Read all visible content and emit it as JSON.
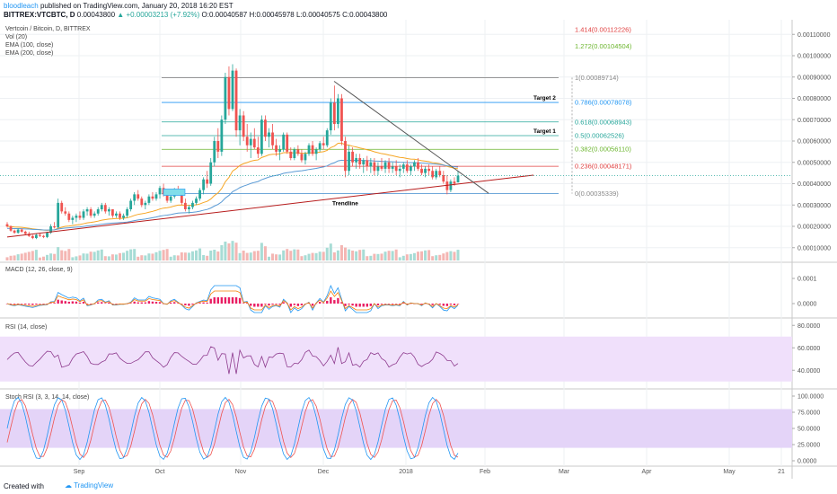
{
  "header": {
    "author": "bloodleach",
    "published": "published on TradingView.com, January 20, 2018 16:20 EST",
    "symbol": "BITTREX:VTCBTC, D",
    "last": "0.00043800",
    "change": "▲ +0.00003213 (+7.92%)",
    "ohlc": "O:0.00040587 H:0.00045978 L:0.00040575 C:0.00043800"
  },
  "footer": {
    "created": "Created with",
    "brand": "TradingView"
  },
  "chart_data": [
    {
      "type": "candlestick",
      "pane": "main",
      "legend": [
        "Vertcoin / Bitcoin, D, BITTREX",
        "Vol (20)",
        "EMA (100, close)",
        "EMA (200, close)"
      ],
      "y_ticks": [
        "0.00110000",
        "0.00100000",
        "0.00090000",
        "0.00080000",
        "0.00070000",
        "0.00060000",
        "0.00050000",
        "0.00040000",
        "0.00030000",
        "0.00020000",
        "0.00010000"
      ],
      "ylim": [
        4e-05,
        0.00116
      ],
      "x_ticks": [
        "Sep",
        "Oct",
        "Nov",
        "Dec",
        "2018",
        "Feb",
        "Mar",
        "Apr",
        "May",
        "21"
      ],
      "colors": {
        "up": "#26a69a",
        "down": "#ef5350",
        "ema100": "#f6a624",
        "ema200": "#5b9bd5",
        "volume_up": "#a7dcd5",
        "volume_down": "#f4b6b3"
      },
      "fibonacci": [
        {
          "label": "1.414(0.00112226)",
          "value": 0.00112226,
          "color": "#e04040"
        },
        {
          "label": "1.272(0.00104504)",
          "value": 0.00104504,
          "color": "#6bb52d"
        },
        {
          "label": "1(0.00089714)",
          "value": 0.00089714,
          "color": "#888888"
        },
        {
          "label": "0.786(0.00078078)",
          "value": 0.00078078,
          "color": "#2196f3"
        },
        {
          "label": "0.618(0.00068943)",
          "value": 0.00068943,
          "color": "#26a69a"
        },
        {
          "label": "0.5(0.00062526)",
          "value": 0.00062526,
          "color": "#26a69a"
        },
        {
          "label": "0.382(0.00056110)",
          "value": 0.0005611,
          "color": "#6bb52d"
        },
        {
          "label": "0.236(0.00048171)",
          "value": 0.00048171,
          "color": "#e04040"
        },
        {
          "label": "0(0.00035339)",
          "value": 0.00035339,
          "color": "#888888"
        }
      ],
      "annotations": [
        "Target 2",
        "Target 1",
        "Trendline"
      ],
      "candles": [
        [
          0.00021,
          0.00022,
          0.000195,
          0.0002
        ],
        [
          0.0002,
          0.000205,
          0.000175,
          0.00018
        ],
        [
          0.00018,
          0.000185,
          0.000165,
          0.00017
        ],
        [
          0.00017,
          0.00019,
          0.000165,
          0.000185
        ],
        [
          0.000185,
          0.00019,
          0.00017,
          0.000175
        ],
        [
          0.000175,
          0.00018,
          0.00016,
          0.000165
        ],
        [
          0.000165,
          0.000175,
          0.00015,
          0.000155
        ],
        [
          0.000155,
          0.00016,
          0.00014,
          0.000145
        ],
        [
          0.000145,
          0.000165,
          0.00014,
          0.00016
        ],
        [
          0.00016,
          0.00017,
          0.00015,
          0.000155
        ],
        [
          0.000155,
          0.00016,
          0.000145,
          0.00015
        ],
        [
          0.00015,
          0.000175,
          0.000145,
          0.00017
        ],
        [
          0.00017,
          0.00021,
          0.000165,
          0.0002
        ],
        [
          0.0002,
          0.00022,
          0.00019,
          0.000195
        ],
        [
          0.000195,
          0.00033,
          0.00019,
          0.00031
        ],
        [
          0.00031,
          0.00032,
          0.00026,
          0.00027
        ],
        [
          0.00027,
          0.00029,
          0.00025,
          0.00026
        ],
        [
          0.00026,
          0.00027,
          0.00022,
          0.00023
        ],
        [
          0.00023,
          0.00025,
          0.00021,
          0.00024
        ],
        [
          0.00024,
          0.00026,
          0.00022,
          0.00025
        ],
        [
          0.00025,
          0.00027,
          0.00023,
          0.00024
        ],
        [
          0.00024,
          0.00028,
          0.00023,
          0.00027
        ],
        [
          0.00027,
          0.00029,
          0.00025,
          0.00028
        ],
        [
          0.00028,
          0.00029,
          0.00024,
          0.00025
        ],
        [
          0.00025,
          0.00027,
          0.00024,
          0.00026
        ],
        [
          0.00026,
          0.00029,
          0.00025,
          0.00028
        ],
        [
          0.00028,
          0.00031,
          0.00027,
          0.0003
        ],
        [
          0.0003,
          0.00031,
          0.00026,
          0.00027
        ],
        [
          0.00027,
          0.00029,
          0.00025,
          0.00028
        ],
        [
          0.00028,
          0.00028,
          0.00024,
          0.00025
        ],
        [
          0.00025,
          0.00027,
          0.00024,
          0.00026
        ],
        [
          0.00026,
          0.00027,
          0.00023,
          0.00024
        ],
        [
          0.00024,
          0.00026,
          0.00023,
          0.00025
        ],
        [
          0.00025,
          0.00029,
          0.00024,
          0.00028
        ],
        [
          0.00028,
          0.00033,
          0.00027,
          0.00032
        ],
        [
          0.00032,
          0.00036,
          0.0003,
          0.00035
        ],
        [
          0.00035,
          0.00037,
          0.00032,
          0.00033
        ],
        [
          0.00033,
          0.00034,
          0.00029,
          0.0003
        ],
        [
          0.0003,
          0.00032,
          0.00028,
          0.00031
        ],
        [
          0.00031,
          0.00035,
          0.0003,
          0.00034
        ],
        [
          0.00034,
          0.00036,
          0.00032,
          0.00033
        ],
        [
          0.00033,
          0.00036,
          0.00032,
          0.00035
        ],
        [
          0.00035,
          0.00039,
          0.00033,
          0.00038
        ],
        [
          0.00038,
          0.0004,
          0.00034,
          0.00035
        ],
        [
          0.00035,
          0.00037,
          0.00031,
          0.00032
        ],
        [
          0.00032,
          0.00035,
          0.00031,
          0.00034
        ],
        [
          0.00034,
          0.00038,
          0.00033,
          0.00037
        ],
        [
          0.00037,
          0.00039,
          0.00035,
          0.00036
        ],
        [
          0.00036,
          0.00037,
          0.0003,
          0.00031
        ],
        [
          0.00031,
          0.00033,
          0.00027,
          0.00028
        ],
        [
          0.00028,
          0.0003,
          0.00026,
          0.00029
        ],
        [
          0.00029,
          0.00032,
          0.00028,
          0.00031
        ],
        [
          0.00031,
          0.00034,
          0.0003,
          0.00033
        ],
        [
          0.00033,
          0.00038,
          0.00032,
          0.00037
        ],
        [
          0.00037,
          0.00043,
          0.00035,
          0.00042
        ],
        [
          0.00042,
          0.00046,
          0.00038,
          0.0004
        ],
        [
          0.0004,
          0.00052,
          0.00039,
          0.0005
        ],
        [
          0.0005,
          0.00062,
          0.00048,
          0.0006
        ],
        [
          0.0006,
          0.00066,
          0.00052,
          0.00055
        ],
        [
          0.00055,
          0.00072,
          0.00053,
          0.0007
        ],
        [
          0.0007,
          0.00092,
          0.00068,
          0.0009
        ],
        [
          0.0009,
          0.00095,
          0.00072,
          0.00075
        ],
        [
          0.00075,
          0.00096,
          0.00074,
          0.00093
        ],
        [
          0.00093,
          0.00094,
          0.00062,
          0.00065
        ],
        [
          0.00065,
          0.00075,
          0.00058,
          0.00072
        ],
        [
          0.00072,
          0.00074,
          0.0006,
          0.00062
        ],
        [
          0.00062,
          0.00068,
          0.00055,
          0.00058
        ],
        [
          0.00058,
          0.00064,
          0.00052,
          0.00061
        ],
        [
          0.00061,
          0.00066,
          0.00056,
          0.00057
        ],
        [
          0.00057,
          0.00062,
          0.00052,
          0.00054
        ],
        [
          0.00054,
          0.00072,
          0.00053,
          0.0007
        ],
        [
          0.0007,
          0.00072,
          0.0006,
          0.00062
        ],
        [
          0.00062,
          0.00066,
          0.00057,
          0.00064
        ],
        [
          0.00064,
          0.00068,
          0.00056,
          0.00058
        ],
        [
          0.00058,
          0.00061,
          0.00053,
          0.00055
        ],
        [
          0.00055,
          0.00058,
          0.00051,
          0.00056
        ],
        [
          0.00056,
          0.00064,
          0.00055,
          0.00063
        ],
        [
          0.00063,
          0.00064,
          0.00054,
          0.00055
        ],
        [
          0.00055,
          0.00057,
          0.00051,
          0.00052
        ],
        [
          0.00052,
          0.00057,
          0.00051,
          0.00056
        ],
        [
          0.00056,
          0.00058,
          0.00053,
          0.00054
        ],
        [
          0.00054,
          0.00056,
          0.0005,
          0.00051
        ],
        [
          0.00051,
          0.00055,
          0.00049,
          0.00054
        ],
        [
          0.00054,
          0.00059,
          0.00053,
          0.00058
        ],
        [
          0.00058,
          0.0006,
          0.00053,
          0.00054
        ],
        [
          0.00054,
          0.00057,
          0.00051,
          0.00056
        ],
        [
          0.00056,
          0.0006,
          0.00055,
          0.00059
        ],
        [
          0.00059,
          0.00062,
          0.00056,
          0.00058
        ],
        [
          0.00058,
          0.00066,
          0.00057,
          0.00065
        ],
        [
          0.00065,
          0.0008,
          0.00063,
          0.00078
        ],
        [
          0.00078,
          0.00086,
          0.00065,
          0.00068
        ],
        [
          0.00068,
          0.00082,
          0.00066,
          0.0008
        ],
        [
          0.0008,
          0.00082,
          0.00058,
          0.0006
        ],
        [
          0.0006,
          0.00062,
          0.00043,
          0.00046
        ],
        [
          0.00046,
          0.00058,
          0.00044,
          0.00055
        ],
        [
          0.00055,
          0.00057,
          0.00048,
          0.0005
        ],
        [
          0.0005,
          0.00054,
          0.00047,
          0.00052
        ],
        [
          0.00052,
          0.00054,
          0.00047,
          0.00049
        ],
        [
          0.00049,
          0.00052,
          0.00045,
          0.00051
        ],
        [
          0.00051,
          0.00053,
          0.00046,
          0.00048
        ],
        [
          0.00048,
          0.00052,
          0.00045,
          0.0005
        ],
        [
          0.0005,
          0.00052,
          0.00044,
          0.00046
        ],
        [
          0.00046,
          0.0005,
          0.00044,
          0.00048
        ],
        [
          0.00048,
          0.00052,
          0.00046,
          0.00047
        ],
        [
          0.00047,
          0.00051,
          0.00045,
          0.0005
        ],
        [
          0.0005,
          0.00052,
          0.00045,
          0.00047
        ],
        [
          0.00047,
          0.0005,
          0.00045,
          0.00048
        ],
        [
          0.00048,
          0.00051,
          0.00044,
          0.00046
        ],
        [
          0.00046,
          0.00049,
          0.00043,
          0.00047
        ],
        [
          0.00047,
          0.0005,
          0.00045,
          0.00049
        ],
        [
          0.00049,
          0.00051,
          0.00045,
          0.00046
        ],
        [
          0.00046,
          0.00049,
          0.00044,
          0.00048
        ],
        [
          0.00048,
          0.00051,
          0.00046,
          0.0005
        ],
        [
          0.0005,
          0.00052,
          0.00046,
          0.00047
        ],
        [
          0.00047,
          0.00049,
          0.00044,
          0.00045
        ],
        [
          0.00045,
          0.00048,
          0.00043,
          0.00047
        ],
        [
          0.00047,
          0.00049,
          0.00044,
          0.00046
        ],
        [
          0.00046,
          0.00048,
          0.00042,
          0.00043
        ],
        [
          0.00043,
          0.00047,
          0.00042,
          0.00046
        ],
        [
          0.00046,
          0.00048,
          0.00043,
          0.00044
        ],
        [
          0.00044,
          0.00046,
          0.0004,
          0.00041
        ],
        [
          0.00041,
          0.00044,
          0.00035,
          0.00037
        ],
        [
          0.00037,
          0.00042,
          0.00036,
          0.00041
        ],
        [
          0.00041,
          0.00043,
          0.00039,
          0.0004
        ],
        [
          0.000406,
          0.00046,
          0.000406,
          0.000438
        ]
      ]
    },
    {
      "type": "line",
      "pane": "macd",
      "legend": "MACD (12, 26, close, 9)",
      "y_ticks": [
        "0.0001",
        "0.0000"
      ],
      "colors": {
        "macd": "#2196f3",
        "signal": "#f57c00",
        "hist": "#e91e63"
      }
    },
    {
      "type": "line",
      "pane": "rsi",
      "legend": "RSI (14, close)",
      "y_ticks": [
        "80.0000",
        "60.0000",
        "40.0000"
      ],
      "colors": {
        "rsi": "#8e3b8e",
        "band": "#f0e0fb"
      }
    },
    {
      "type": "line",
      "pane": "stochrsi",
      "legend": "Stoch RSI (3, 3, 14, 14, close)",
      "y_ticks": [
        "100.0000",
        "75.0000",
        "50.0000",
        "25.0000",
        "0.0000"
      ],
      "colors": {
        "k": "#2196f3",
        "d": "#ef5350",
        "band": "#e4d4f8"
      }
    }
  ]
}
